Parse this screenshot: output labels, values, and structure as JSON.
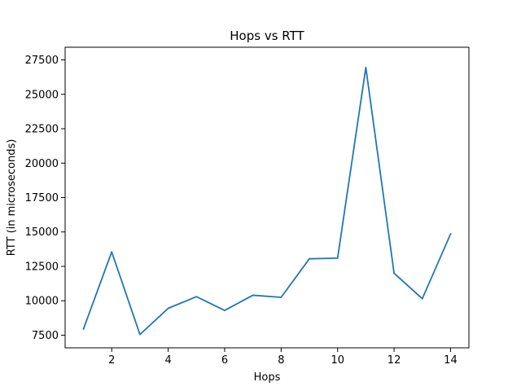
{
  "chart_data": {
    "type": "line",
    "title": "Hops vs RTT",
    "xlabel": "Hops",
    "ylabel": "RTT (in microseconds)",
    "x": [
      1,
      2,
      3,
      4,
      5,
      6,
      7,
      8,
      9,
      10,
      11,
      12,
      13,
      14
    ],
    "series": [
      {
        "values": [
          7950,
          13550,
          7550,
          9450,
          10300,
          9300,
          10400,
          10250,
          13050,
          13100,
          26950,
          12000,
          10150,
          14850
        ],
        "color": "#1f77b4"
      }
    ],
    "xlim": [
      0.35,
      14.65
    ],
    "ylim": [
      6580,
      28420
    ],
    "xticks": [
      2,
      4,
      6,
      8,
      10,
      12,
      14
    ],
    "xtick_labels": [
      "2",
      "4",
      "6",
      "8",
      "10",
      "12",
      "14"
    ],
    "yticks": [
      7500,
      10000,
      12500,
      15000,
      17500,
      20000,
      22500,
      25000,
      27500
    ],
    "ytick_labels": [
      "7500",
      "10000",
      "12500",
      "15000",
      "17500",
      "20000",
      "22500",
      "25000",
      "27500"
    ],
    "grid": false,
    "legend": "none"
  }
}
